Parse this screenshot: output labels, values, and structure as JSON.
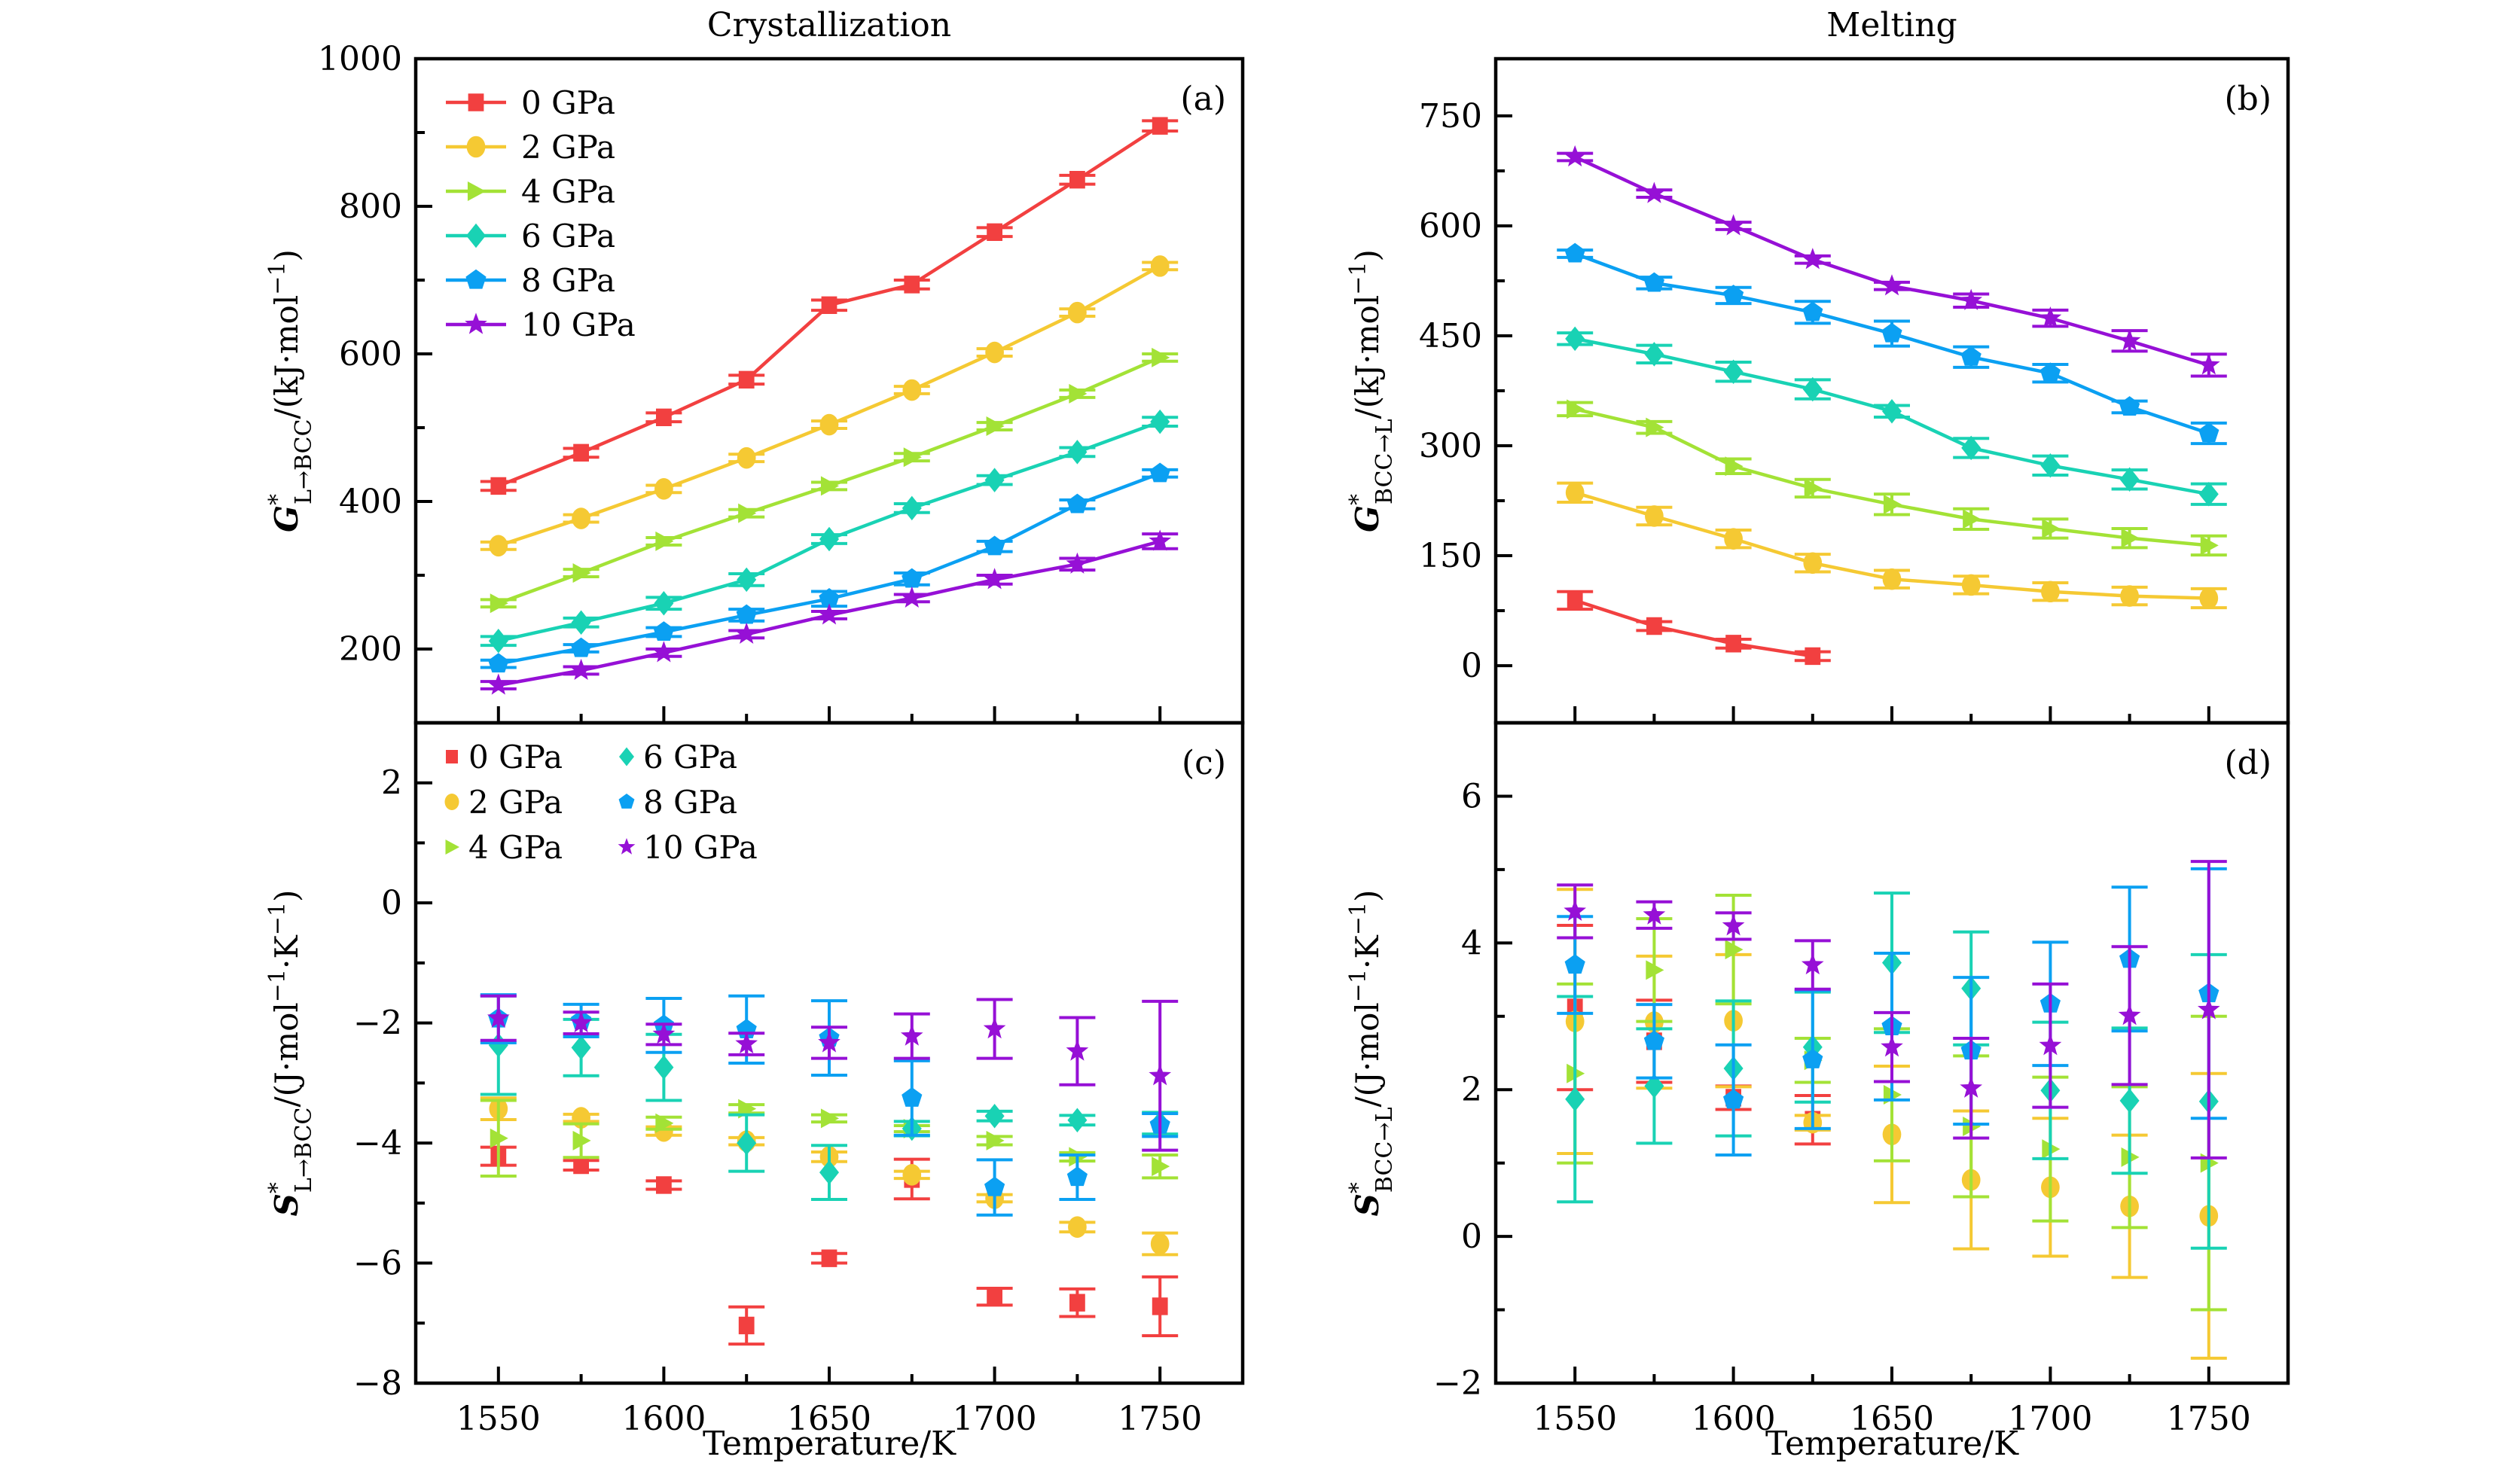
{
  "figure": {
    "titles": {
      "left": "Crystallization",
      "right": "Melting"
    },
    "xlabel": "Temperature/K"
  },
  "colors": {
    "0 GPa": "#f24040",
    "2 GPa": "#f5c933",
    "4 GPa": "#a3e236",
    "6 GPa": "#19d2b4",
    "8 GPa": "#0ba0f2",
    "10 GPa": "#9610d6"
  },
  "chart_data": [
    {
      "id": "a",
      "type": "line",
      "panel_tag": "(a)",
      "title": "Crystallization",
      "ylabel": {
        "symbol": "G",
        "superscript": "*",
        "subscript": "L→BCC",
        "unit": "/(kJ·mol",
        "unit_exp": "−1",
        "unit_close": ")"
      },
      "xlabel": "",
      "xlim": [
        1525,
        1775
      ],
      "ylim": [
        100,
        1000
      ],
      "xticks": [
        1550,
        1600,
        1650,
        1700,
        1750
      ],
      "xminor": [
        1575,
        1625,
        1675,
        1725
      ],
      "yticks": [
        200,
        400,
        600,
        800,
        1000
      ],
      "yminor": [
        300,
        500,
        700,
        900
      ],
      "show_xticklabels": false,
      "legend": {
        "placement": "top-left",
        "columns": 1,
        "with_lines": true
      },
      "x": [
        1550,
        1575,
        1600,
        1625,
        1650,
        1675,
        1700,
        1725,
        1750
      ],
      "series": [
        {
          "name": "0 GPa",
          "marker": "square",
          "values": [
            421,
            466,
            514,
            565,
            666,
            694,
            765,
            836,
            909
          ],
          "errors": [
            6,
            6,
            6,
            6,
            7,
            6,
            6,
            6,
            7
          ]
        },
        {
          "name": "2 GPa",
          "marker": "circle",
          "values": [
            340,
            377,
            417,
            459,
            504,
            551,
            602,
            656,
            719
          ],
          "errors": [
            5,
            5,
            5,
            5,
            5,
            5,
            5,
            5,
            5
          ]
        },
        {
          "name": "4 GPa",
          "marker": "triangle-right",
          "values": [
            262,
            303,
            346,
            384,
            421,
            460,
            502,
            546,
            595
          ],
          "errors": [
            5,
            5,
            5,
            5,
            5,
            5,
            5,
            5,
            5
          ]
        },
        {
          "name": "6 GPa",
          "marker": "diamond",
          "values": [
            211,
            236,
            262,
            294,
            349,
            391,
            429,
            467,
            508
          ],
          "errors": [
            6,
            6,
            8,
            8,
            6,
            6,
            6,
            6,
            6
          ]
        },
        {
          "name": "8 GPa",
          "marker": "pentagon",
          "values": [
            180,
            201,
            223,
            246,
            268,
            295,
            339,
            396,
            438
          ],
          "errors": [
            5,
            5,
            6,
            8,
            10,
            8,
            7,
            6,
            5
          ]
        },
        {
          "name": "10 GPa",
          "marker": "star",
          "values": [
            151,
            171,
            195,
            220,
            246,
            269,
            294,
            315,
            346
          ],
          "errors": [
            5,
            5,
            5,
            5,
            5,
            5,
            6,
            8,
            10
          ]
        }
      ]
    },
    {
      "id": "b",
      "type": "line",
      "panel_tag": "(b)",
      "title": "Melting",
      "ylabel": {
        "symbol": "G",
        "superscript": "*",
        "subscript": "BCC→L",
        "unit": "/(kJ·mol",
        "unit_exp": "−1",
        "unit_close": ")"
      },
      "xlabel": "",
      "xlim": [
        1525,
        1775
      ],
      "ylim": [
        -78,
        828
      ],
      "xticks": [
        1550,
        1600,
        1650,
        1700,
        1750
      ],
      "xminor": [
        1575,
        1625,
        1675,
        1725
      ],
      "yticks": [
        0,
        150,
        300,
        450,
        600,
        750
      ],
      "yminor": [
        75,
        225,
        375,
        525,
        675
      ],
      "show_xticklabels": false,
      "legend": null,
      "x": [
        1550,
        1575,
        1600,
        1625,
        1650,
        1675,
        1700,
        1725,
        1750
      ],
      "series": [
        {
          "name": "0 GPa",
          "marker": "square",
          "x": [
            1550,
            1575,
            1600,
            1625
          ],
          "values": [
            89,
            54,
            30,
            13
          ],
          "errors": [
            12,
            6,
            6,
            6
          ]
        },
        {
          "name": "2 GPa",
          "marker": "circle",
          "values": [
            236,
            204,
            173,
            140,
            118,
            110,
            101,
            95,
            92
          ],
          "errors": [
            13,
            12,
            12,
            12,
            12,
            12,
            12,
            12,
            13
          ]
        },
        {
          "name": "4 GPa",
          "marker": "triangle-right",
          "values": [
            350,
            325,
            272,
            242,
            220,
            200,
            187,
            174,
            164
          ],
          "errors": [
            9,
            8,
            10,
            12,
            14,
            14,
            13,
            13,
            13
          ]
        },
        {
          "name": "6 GPa",
          "marker": "diamond",
          "values": [
            446,
            425,
            401,
            377,
            347,
            297,
            273,
            254,
            234
          ],
          "errors": [
            8,
            12,
            13,
            13,
            8,
            13,
            13,
            13,
            14
          ]
        },
        {
          "name": "8 GPa",
          "marker": "pentagon",
          "values": [
            562,
            522,
            505,
            482,
            453,
            421,
            399,
            353,
            317
          ],
          "errors": [
            5,
            8,
            11,
            15,
            17,
            14,
            12,
            8,
            14
          ]
        },
        {
          "name": "10 GPa",
          "marker": "star",
          "values": [
            694,
            644,
            600,
            554,
            518,
            498,
            474,
            443,
            410
          ],
          "errors": [
            5,
            5,
            5,
            5,
            5,
            9,
            11,
            14,
            15
          ]
        }
      ]
    },
    {
      "id": "c",
      "type": "scatter",
      "panel_tag": "(c)",
      "title": "",
      "ylabel": {
        "symbol": "S",
        "superscript": "*",
        "subscript": "L→BCC",
        "unit": "/(J·mol",
        "unit_exp": "−1",
        "unit_mid": "·K",
        "unit_exp2": "−1",
        "unit_close": ")"
      },
      "xlabel": "Temperature/K",
      "xlim": [
        1525,
        1775
      ],
      "ylim": [
        -8,
        3
      ],
      "xticks": [
        1550,
        1600,
        1650,
        1700,
        1750
      ],
      "xminor": [
        1575,
        1625,
        1675,
        1725
      ],
      "yticks": [
        -8,
        -6,
        -4,
        -2,
        0,
        2
      ],
      "yminor": [
        -7,
        -5,
        -3,
        -1,
        1
      ],
      "show_xticklabels": true,
      "legend": {
        "placement": "top-left",
        "columns": 2,
        "with_lines": false
      },
      "x": [
        1550,
        1575,
        1600,
        1625,
        1650,
        1675,
        1700,
        1725,
        1750
      ],
      "series": [
        {
          "name": "0 GPa",
          "marker": "square",
          "values": [
            -4.22,
            -4.37,
            -4.7,
            -7.04,
            -5.92,
            -4.6,
            -6.56,
            -6.66,
            -6.72
          ],
          "errors": [
            0.15,
            0.08,
            0.07,
            0.31,
            0.08,
            0.33,
            0.14,
            0.23,
            0.49
          ]
        },
        {
          "name": "2 GPa",
          "marker": "circle",
          "values": [
            -3.43,
            -3.58,
            -3.8,
            -3.97,
            -4.23,
            -4.53,
            -4.92,
            -5.4,
            -5.68
          ],
          "errors": [
            0.18,
            0.06,
            0.07,
            0.06,
            0.08,
            0.06,
            0.06,
            0.08,
            0.18
          ]
        },
        {
          "name": "4 GPa",
          "marker": "triangle-right",
          "values": [
            -3.92,
            -3.96,
            -3.67,
            -3.43,
            -3.59,
            -3.76,
            -3.96,
            -4.23,
            -4.39
          ],
          "errors": [
            0.63,
            0.28,
            0.1,
            0.07,
            0.06,
            0.05,
            0.07,
            0.07,
            0.19
          ]
        },
        {
          "name": "6 GPa",
          "marker": "diamond",
          "values": [
            -2.37,
            -2.41,
            -2.74,
            -4.0,
            -4.49,
            -3.76,
            -3.55,
            -3.62,
            -3.67
          ],
          "errors": [
            0.82,
            0.47,
            0.55,
            0.47,
            0.45,
            0.12,
            0.08,
            0.08,
            0.18
          ]
        },
        {
          "name": "8 GPa",
          "marker": "pentagon",
          "values": [
            -1.93,
            -1.96,
            -2.04,
            -2.11,
            -2.25,
            -3.25,
            -4.74,
            -4.57,
            -3.7
          ],
          "errors": [
            0.4,
            0.27,
            0.45,
            0.56,
            0.62,
            0.62,
            0.46,
            0.37,
            0.19
          ]
        },
        {
          "name": "10 GPa",
          "marker": "star",
          "values": [
            -1.92,
            -2.0,
            -2.19,
            -2.35,
            -2.33,
            -2.22,
            -2.1,
            -2.47,
            -2.88
          ],
          "errors": [
            0.37,
            0.18,
            0.17,
            0.18,
            0.26,
            0.37,
            0.49,
            0.56,
            1.24
          ]
        }
      ]
    },
    {
      "id": "d",
      "type": "scatter",
      "panel_tag": "(d)",
      "title": "",
      "ylabel": {
        "symbol": "S",
        "superscript": "*",
        "subscript": "BCC→L",
        "unit": "/(J·mol",
        "unit_exp": "−1",
        "unit_mid": "·K",
        "unit_exp2": "−1",
        "unit_close": ")"
      },
      "xlabel": "Temperature/K",
      "xlim": [
        1525,
        1775
      ],
      "ylim": [
        -2,
        7
      ],
      "xticks": [
        1550,
        1600,
        1650,
        1700,
        1750
      ],
      "xminor": [
        1575,
        1625,
        1675,
        1725
      ],
      "yticks": [
        -2,
        0,
        2,
        4,
        6
      ],
      "yminor": [
        -1,
        1,
        3,
        5
      ],
      "show_xticklabels": true,
      "legend": null,
      "x": [
        1550,
        1575,
        1600,
        1625,
        1650,
        1675,
        1700,
        1725,
        1750
      ],
      "series": [
        {
          "name": "0 GPa",
          "marker": "square",
          "x": [
            1550,
            1575,
            1600,
            1625
          ],
          "values": [
            3.12,
            2.66,
            1.89,
            1.59
          ],
          "errors": [
            1.12,
            0.56,
            0.16,
            0.33
          ]
        },
        {
          "name": "2 GPa",
          "marker": "circle",
          "values": [
            2.93,
            2.92,
            2.94,
            1.55,
            1.39,
            0.77,
            0.67,
            0.41,
            0.28
          ],
          "errors": [
            1.8,
            0.9,
            0.9,
            0.1,
            0.93,
            0.94,
            0.94,
            0.97,
            1.94
          ]
        },
        {
          "name": "4 GPa",
          "marker": "triangle-right",
          "values": [
            2.22,
            3.63,
            3.91,
            2.4,
            1.93,
            1.5,
            1.19,
            1.08,
            1.0
          ],
          "errors": [
            1.22,
            0.7,
            0.74,
            0.3,
            0.9,
            0.96,
            0.98,
            0.96,
            2.0
          ]
        },
        {
          "name": "6 GPa",
          "marker": "diamond",
          "values": [
            1.87,
            2.05,
            2.29,
            2.58,
            3.73,
            3.38,
            1.99,
            1.85,
            1.84
          ],
          "errors": [
            1.4,
            0.78,
            0.92,
            0.75,
            0.95,
            0.77,
            0.93,
            0.99,
            2.0
          ]
        },
        {
          "name": "8 GPa",
          "marker": "pentagon",
          "values": [
            3.7,
            2.66,
            1.86,
            2.41,
            2.86,
            2.53,
            3.17,
            3.78,
            3.31
          ],
          "errors": [
            0.66,
            0.5,
            0.75,
            0.94,
            1.0,
            1.0,
            0.84,
            0.98,
            1.7
          ]
        },
        {
          "name": "10 GPa",
          "marker": "star",
          "values": [
            4.43,
            4.38,
            4.23,
            3.7,
            2.58,
            2.02,
            2.6,
            3.01,
            3.09
          ],
          "errors": [
            0.36,
            0.18,
            0.18,
            0.33,
            0.47,
            0.68,
            0.84,
            0.94,
            2.02
          ]
        }
      ]
    }
  ]
}
